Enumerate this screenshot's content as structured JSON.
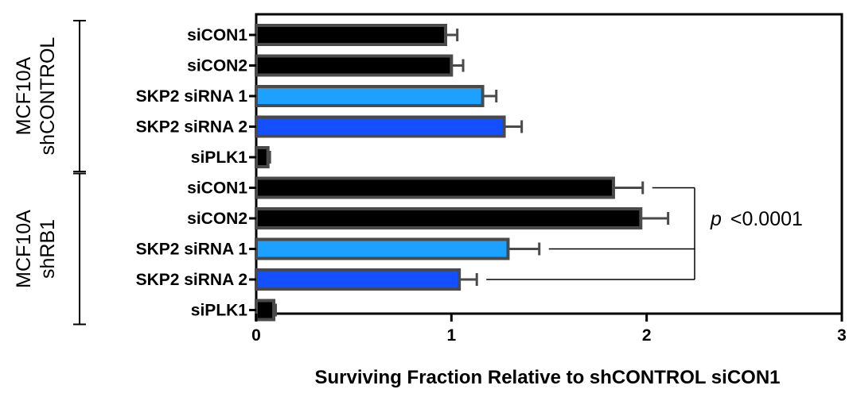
{
  "chart_data": {
    "type": "bar",
    "orientation": "horizontal",
    "xlabel": "Surviving Fraction Relative to shCONTROL siCON1",
    "xlim": [
      0,
      3
    ],
    "xticks": [
      "0",
      "1",
      "2",
      "3"
    ],
    "grid": false,
    "groups": [
      {
        "label_line1": "MCF10A",
        "label_line2": "shCONTROL",
        "bars": [
          {
            "label": "siCON1",
            "value": 0.97,
            "error": 0.06,
            "color": "#000000"
          },
          {
            "label": "siCON2",
            "value": 1.0,
            "error": 0.06,
            "color": "#000000"
          },
          {
            "label": "SKP2 siRNA 1",
            "value": 1.16,
            "error": 0.07,
            "color": "#1ea0ff"
          },
          {
            "label": "SKP2 siRNA 2",
            "value": 1.27,
            "error": 0.09,
            "color": "#1450ff"
          },
          {
            "label": "siPLK1",
            "value": 0.06,
            "error": 0.01,
            "color": "#000000"
          }
        ]
      },
      {
        "label_line1": "MCF10A",
        "label_line2": "shRB1",
        "bars": [
          {
            "label": "siCON1",
            "value": 1.83,
            "error": 0.15,
            "color": "#000000"
          },
          {
            "label": "siCON2",
            "value": 1.97,
            "error": 0.14,
            "color": "#000000"
          },
          {
            "label": "SKP2 siRNA 1",
            "value": 1.29,
            "error": 0.16,
            "color": "#1ea0ff"
          },
          {
            "label": "SKP2 siRNA 2",
            "value": 1.04,
            "error": 0.09,
            "color": "#1450ff"
          },
          {
            "label": "siPLK1",
            "value": 0.09,
            "error": 0.01,
            "color": "#000000"
          }
        ]
      }
    ],
    "annotation": {
      "p_symbol": "p",
      "text": "<0.0001"
    },
    "bar_edge_color": "#4a4a4a"
  }
}
